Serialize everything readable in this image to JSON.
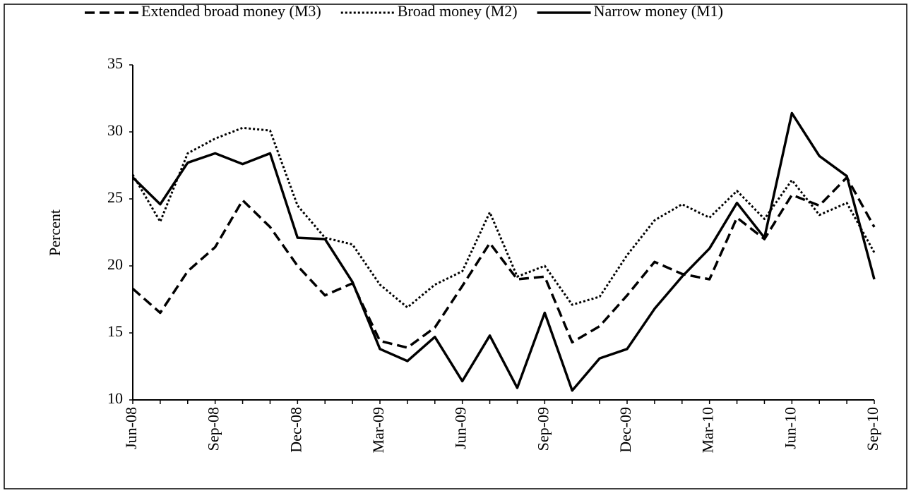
{
  "chart_data": {
    "type": "line",
    "y_label": "Percent",
    "categories": [
      "Jun-08",
      null,
      null,
      "Sep-08",
      null,
      null,
      "Dec-08",
      null,
      null,
      "Mar-09",
      null,
      null,
      "Jun-09",
      null,
      null,
      "Sep-09",
      null,
      null,
      "Dec-09",
      null,
      null,
      "Mar-10",
      null,
      null,
      "Jun-10",
      null,
      null,
      "Sep-10"
    ],
    "series": [
      {
        "name": "Extended broad money (M3)",
        "color": "#000000",
        "style": "dashed",
        "values": [
          18.3,
          16.5,
          19.6,
          21.4,
          24.9,
          22.9,
          20.0,
          17.8,
          18.7,
          14.4,
          13.9,
          15.4,
          18.5,
          21.7,
          19.0,
          19.2,
          14.3,
          15.5,
          17.8,
          20.3,
          19.4,
          19.0,
          23.6,
          22.0,
          25.3,
          24.5,
          26.6,
          22.9
        ]
      },
      {
        "name": "Broad money (M2)",
        "color": "#000000",
        "style": "dotted",
        "values": [
          26.8,
          23.3,
          28.4,
          29.5,
          30.3,
          30.1,
          24.5,
          22.1,
          21.6,
          18.6,
          16.9,
          18.6,
          19.6,
          24.0,
          19.2,
          20.0,
          17.1,
          17.7,
          20.8,
          23.4,
          24.6,
          23.6,
          25.6,
          23.5,
          26.4,
          23.8,
          24.7,
          21.0
        ]
      },
      {
        "name": "Narrow money (M1)",
        "color": "#000000",
        "style": "solid",
        "values": [
          26.6,
          24.6,
          27.7,
          28.4,
          27.6,
          28.4,
          22.1,
          22.0,
          18.8,
          13.8,
          12.9,
          14.7,
          11.4,
          14.8,
          10.9,
          16.5,
          10.7,
          13.1,
          13.8,
          16.8,
          19.2,
          21.3,
          24.7,
          22.1,
          31.4,
          28.2,
          26.7,
          19.0
        ]
      }
    ],
    "ylim": [
      10,
      35
    ],
    "yticks": [
      10,
      15,
      20,
      25,
      30,
      35
    ],
    "grid": false,
    "legend": "top"
  }
}
